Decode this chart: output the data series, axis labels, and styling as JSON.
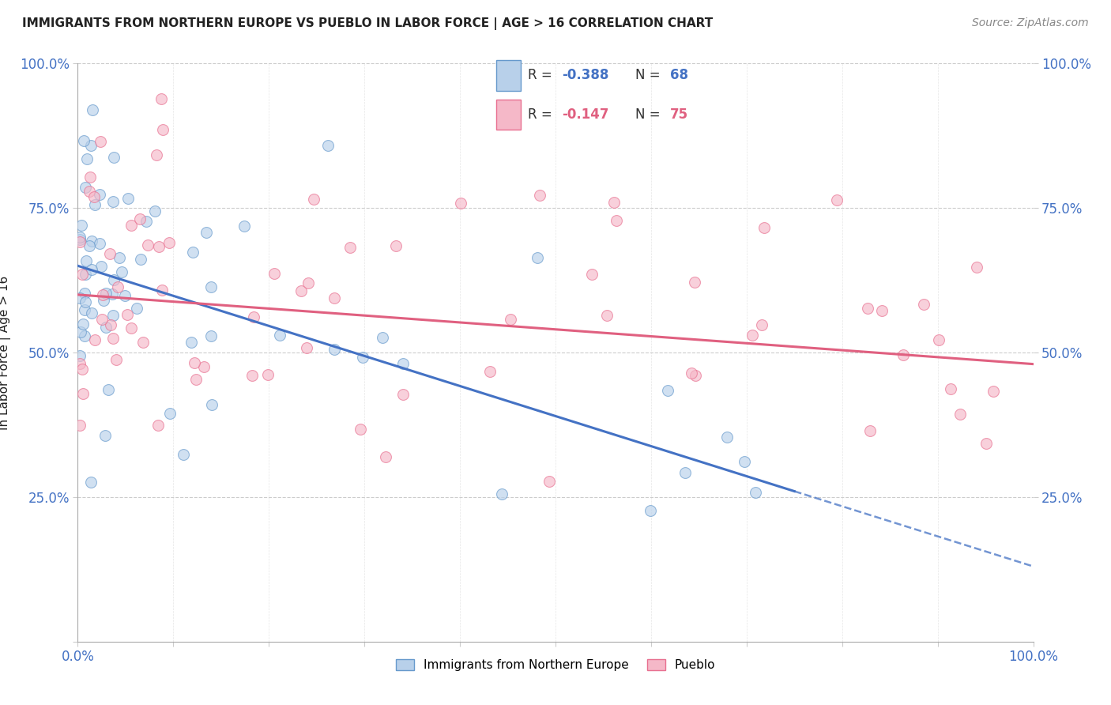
{
  "title": "IMMIGRANTS FROM NORTHERN EUROPE VS PUEBLO IN LABOR FORCE | AGE > 16 CORRELATION CHART",
  "source": "Source: ZipAtlas.com",
  "ylabel": "In Labor Force | Age > 16",
  "legend_bottom": [
    "Immigrants from Northern Europe",
    "Pueblo"
  ],
  "R_blue": "-0.388",
  "N_blue": "68",
  "R_pink": "-0.147",
  "N_pink": "75",
  "blue_fill": "#b8d0ea",
  "pink_fill": "#f5b8c8",
  "blue_edge": "#6699cc",
  "pink_edge": "#e87090",
  "blue_line": "#4472c4",
  "pink_line": "#e06080",
  "background_color": "#ffffff",
  "grid_color": "#cccccc",
  "tick_color": "#4472c4",
  "title_color": "#222222",
  "ylabel_color": "#222222",
  "source_color": "#888888",
  "xlim": [
    0,
    100
  ],
  "ylim": [
    0,
    100
  ],
  "x_ticks": [
    0,
    10,
    20,
    30,
    40,
    50,
    60,
    70,
    80,
    90,
    100
  ],
  "y_ticks": [
    0,
    25,
    50,
    75,
    100
  ],
  "blue_intercept": 65.0,
  "blue_slope": -0.52,
  "pink_intercept": 60.0,
  "pink_slope": -0.12,
  "blue_solid_end": 75,
  "blue_dash_end": 100,
  "marker_size": 100,
  "marker_alpha": 0.65
}
